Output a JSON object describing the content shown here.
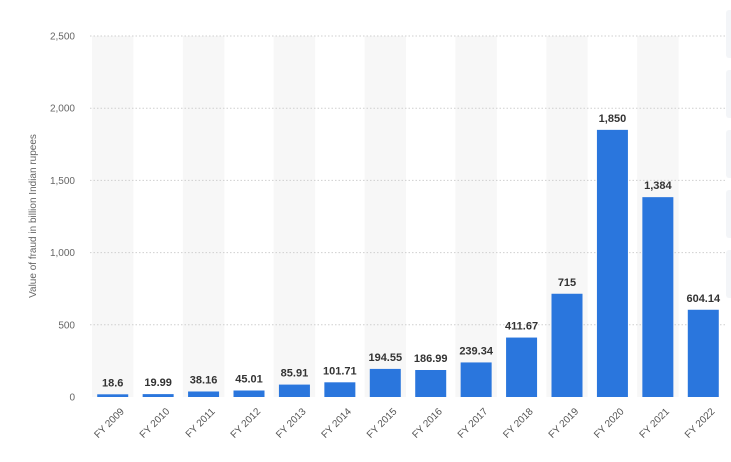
{
  "chart_data": {
    "type": "bar",
    "title": "",
    "xlabel": "",
    "ylabel": "Value of fraud in billion Indian rupees",
    "ylim": [
      0,
      2500
    ],
    "yticks": [
      {
        "value": 0,
        "label": "0"
      },
      {
        "value": 500,
        "label": "500"
      },
      {
        "value": 1000,
        "label": "1,000"
      },
      {
        "value": 1500,
        "label": "1,500"
      },
      {
        "value": 2000,
        "label": "2,000"
      },
      {
        "value": 2500,
        "label": "2,500"
      }
    ],
    "grid": true,
    "bar_color": "#2a76dd",
    "categories": [
      "FY 2009",
      "FY 2010",
      "FY 2011",
      "FY 2012",
      "FY 2013",
      "FY 2014",
      "FY 2015",
      "FY 2016",
      "FY 2017",
      "FY 2018",
      "FY 2019",
      "FY 2020",
      "FY 2021",
      "FY 2022"
    ],
    "values": [
      18.6,
      19.99,
      38.16,
      45.01,
      85.91,
      101.71,
      194.55,
      186.99,
      239.34,
      411.67,
      715,
      1850,
      1384,
      604.14
    ],
    "value_labels": [
      "18.6",
      "19.99",
      "38.16",
      "45.01",
      "85.91",
      "101.71",
      "194.55",
      "186.99",
      "239.34",
      "411.67",
      "715",
      "1,850",
      "1,384",
      "604.14"
    ]
  }
}
